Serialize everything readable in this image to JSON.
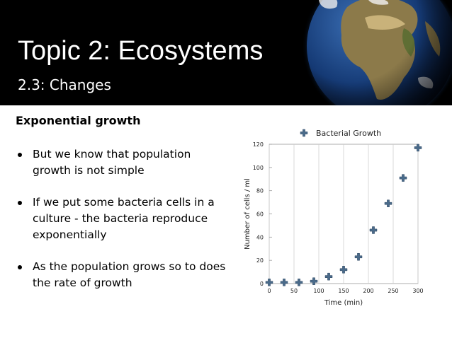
{
  "slide": {
    "title": "Topic 2: Ecosystems",
    "subtitle": "2.3: Changes",
    "heading": "Exponential growth",
    "bullets": [
      "But we know that population growth is not simple",
      "If we put some bacteria cells in a culture - the bacteria reproduce exponentially",
      "As the population grows so to does the rate of growth"
    ],
    "banner_image_icon": "earth-globe-icon"
  },
  "colors": {
    "banner": "#000000",
    "series": "#4a6b8a",
    "grid": "#cfcfcf"
  },
  "chart_data": {
    "type": "scatter",
    "xlabel": "Time (min)",
    "ylabel": "Number of cells / ml",
    "xlim": [
      0,
      300
    ],
    "ylim": [
      0,
      120
    ],
    "xticks": [
      0,
      50,
      100,
      150,
      200,
      250,
      300
    ],
    "yticks": [
      0,
      20,
      40,
      60,
      80,
      100,
      120
    ],
    "grid": true,
    "legend_position": "top",
    "series": [
      {
        "name": "Bacterial Growth",
        "x": [
          0,
          30,
          60,
          90,
          120,
          150,
          180,
          210,
          240,
          270,
          300
        ],
        "y": [
          1,
          1,
          1,
          2,
          6,
          12,
          23,
          46,
          69,
          91,
          117
        ]
      }
    ]
  }
}
